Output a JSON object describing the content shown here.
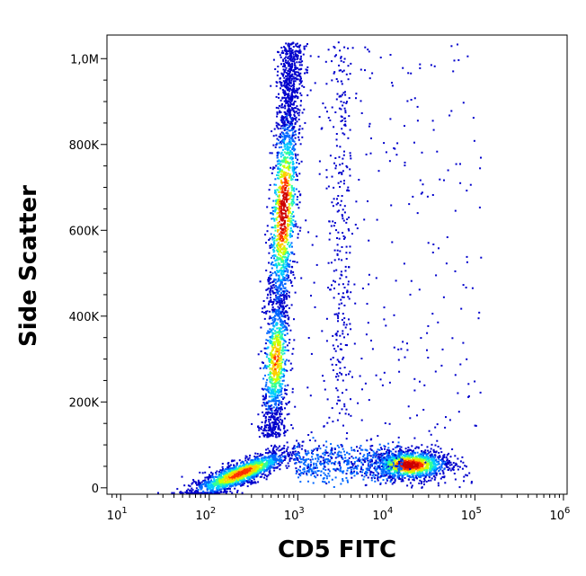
{
  "chart_data": {
    "type": "scatter",
    "subtype": "flow-cytometry-density-dot-plot",
    "title": "",
    "xlabel": "CD5 FITC",
    "ylabel": "Side Scatter",
    "x_scale": "log",
    "y_scale": "linear",
    "xlim": [
      7,
      1100000
    ],
    "ylim": [
      -15000,
      1055000
    ],
    "x_ticks": [
      {
        "value": 10,
        "base": "10",
        "exp": "1"
      },
      {
        "value": 100,
        "base": "10",
        "exp": "2"
      },
      {
        "value": 1000,
        "base": "10",
        "exp": "3"
      },
      {
        "value": 10000,
        "base": "10",
        "exp": "4"
      },
      {
        "value": 100000,
        "base": "10",
        "exp": "5"
      },
      {
        "value": 1000000,
        "base": "10",
        "exp": "6"
      }
    ],
    "y_ticks": [
      {
        "value": 0,
        "label": "0"
      },
      {
        "value": 200000,
        "label": "200K"
      },
      {
        "value": 400000,
        "label": "400K"
      },
      {
        "value": 600000,
        "label": "600K"
      },
      {
        "value": 800000,
        "label": "800K"
      },
      {
        "value": 1000000,
        "label": "1,0M"
      }
    ],
    "grid": false,
    "legend": "none",
    "color_scale": [
      "#0000cc",
      "#0066ff",
      "#00ccff",
      "#33ff99",
      "#ccff00",
      "#ffcc00",
      "#ff3300",
      "#cc0000"
    ],
    "populations": [
      {
        "x_center": 650,
        "y_center": 640000,
        "density": "highest",
        "note": "vertical granular cluster"
      },
      {
        "x_center": 650,
        "y_center": 300000,
        "density": "high"
      },
      {
        "x_center": 200,
        "y_center": 40000,
        "density": "high"
      },
      {
        "x_center": 22000,
        "y_center": 55000,
        "density": "high"
      }
    ]
  }
}
